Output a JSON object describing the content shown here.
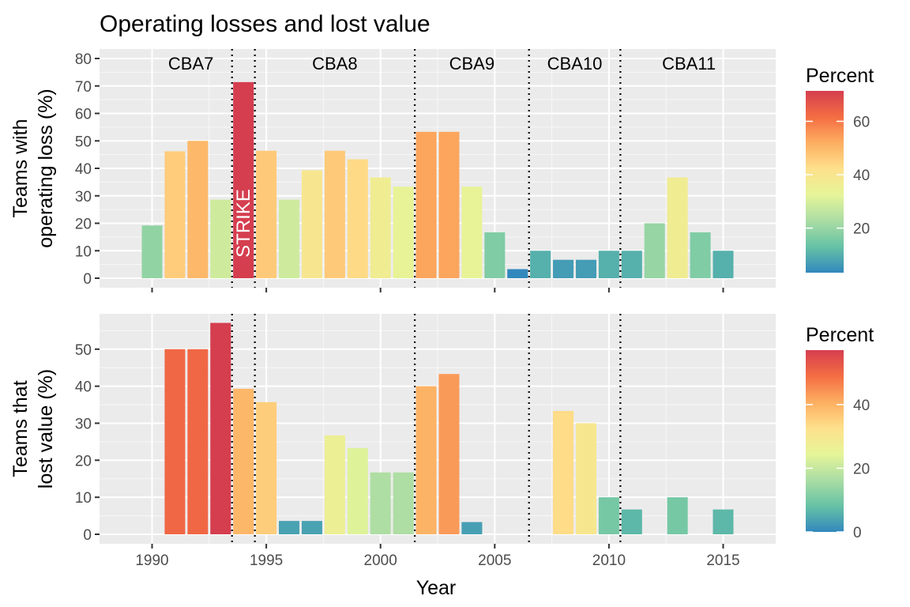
{
  "chart_data": [
    {
      "type": "bar",
      "panel": "top",
      "title": "Operating losses and lost value",
      "ylabel_lines": [
        "Teams with",
        "operating loss (%)"
      ],
      "xlabel": "Year",
      "ylim": [
        0,
        80
      ],
      "yticks": [
        0,
        10,
        20,
        30,
        40,
        50,
        60,
        70,
        80
      ],
      "xlim": [
        1987.7,
        2017.3
      ],
      "xticks": [
        1990,
        1995,
        2000,
        2005,
        2010,
        2015
      ],
      "years": [
        1990,
        1991,
        1992,
        1993,
        1994,
        1995,
        1996,
        1997,
        1998,
        1999,
        2000,
        2001,
        2002,
        2003,
        2004,
        2005,
        2006,
        2007,
        2008,
        2009,
        2010,
        2011,
        2012,
        2013,
        2014,
        2015
      ],
      "values": [
        19.2,
        46.2,
        50.0,
        28.6,
        71.4,
        46.4,
        28.6,
        39.3,
        46.4,
        43.3,
        36.7,
        33.3,
        53.3,
        53.3,
        33.3,
        16.7,
        3.3,
        10.0,
        6.7,
        6.7,
        10.0,
        10.0,
        20.0,
        36.7,
        16.7,
        10.0
      ],
      "legend": {
        "title": "Percent",
        "ticks": [
          20,
          40,
          60
        ],
        "range": [
          3.3,
          71.4
        ]
      },
      "dividers": [
        1993.5,
        1994.5,
        2001.5,
        2006.5,
        2010.5
      ],
      "cba_labels": [
        {
          "text": "CBA7",
          "x": 1991.7
        },
        {
          "text": "CBA8",
          "x": 1998.0
        },
        {
          "text": "CBA9",
          "x": 2004.0
        },
        {
          "text": "CBA10",
          "x": 2008.5
        },
        {
          "text": "CBA11",
          "x": 2013.5
        }
      ],
      "annotation": {
        "text": "STRIKE",
        "x": 1994,
        "y": 20
      }
    },
    {
      "type": "bar",
      "panel": "bottom",
      "ylabel_lines": [
        "Teams that",
        "lost value (%)"
      ],
      "xlabel": "Year",
      "ylim": [
        0,
        57
      ],
      "yticks": [
        0,
        10,
        20,
        30,
        40,
        50
      ],
      "xlim": [
        1987.7,
        2017.3
      ],
      "xticks": [
        1990,
        1995,
        2000,
        2005,
        2010,
        2015
      ],
      "years": [
        1991,
        1992,
        1993,
        1994,
        1995,
        1996,
        1997,
        1998,
        1999,
        2000,
        2001,
        2002,
        2003,
        2004,
        2008,
        2009,
        2010,
        2011,
        2013,
        2015
      ],
      "values": [
        50.0,
        50.0,
        57.1,
        39.3,
        35.7,
        3.6,
        3.6,
        26.7,
        23.3,
        16.7,
        16.7,
        40.0,
        43.3,
        3.3,
        33.3,
        30.0,
        10.0,
        6.7,
        10.0,
        6.7
      ],
      "legend": {
        "title": "Percent",
        "ticks": [
          0,
          20,
          40
        ],
        "range": [
          0,
          57.1
        ]
      },
      "dividers": [
        1993.5,
        1994.5,
        2001.5,
        2006.5,
        2010.5
      ]
    }
  ]
}
